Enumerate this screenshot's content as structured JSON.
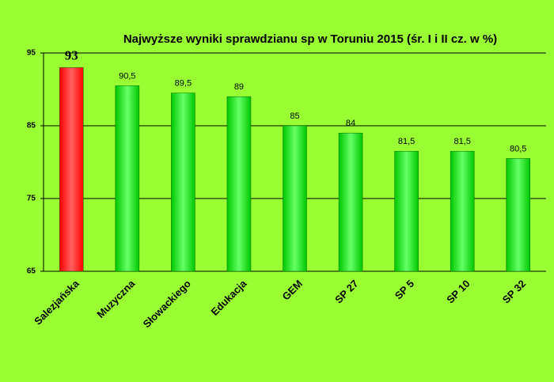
{
  "chart_data": {
    "type": "bar",
    "title": "Najwyższe wyniki sprawdzianu sp w Toruniu 2015 (śr. I i II cz. w %)",
    "categories": [
      "Salezjańska",
      "Muzyczna",
      "Słowackiego",
      "Edukacja",
      "GEM",
      "SP 27",
      "SP 5",
      "SP 10",
      "SP 32"
    ],
    "values": [
      93,
      90.5,
      89.5,
      89,
      85,
      84,
      81.5,
      81.5,
      80.5
    ],
    "value_labels": [
      "93",
      "90,5",
      "89,5",
      "89",
      "85",
      "84",
      "81,5",
      "81,5",
      "80,5"
    ],
    "colors": [
      "#ff0000",
      "#00c800",
      "#00c800",
      "#00c800",
      "#00c800",
      "#00c800",
      "#00c800",
      "#00c800",
      "#00c800"
    ],
    "ylim": [
      65,
      95
    ],
    "yticks": [
      65,
      75,
      85,
      95
    ],
    "grid": true
  }
}
